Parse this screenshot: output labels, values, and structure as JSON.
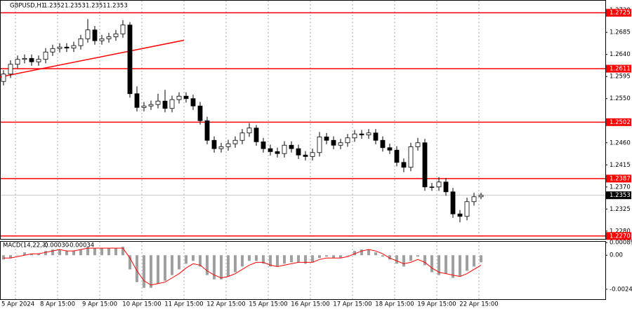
{
  "chart_data": {
    "type": "candlestick",
    "title": "GBPUSD,H1",
    "header_values": [
      1.2352,
      1.2353,
      1.2351,
      1.2353
    ],
    "open": [
      1.2585,
      1.26,
      1.262,
      1.263,
      1.2632,
      1.2625,
      1.263,
      1.2645,
      1.2652,
      1.2655,
      1.2653,
      1.2658,
      1.2672,
      1.269,
      1.2668,
      1.2672,
      1.2676,
      1.2682,
      1.27,
      1.256,
      1.2532,
      1.2535,
      1.2538,
      1.2545,
      1.253,
      1.2548,
      1.2555,
      1.255,
      1.2535,
      1.2505,
      1.2465,
      1.2448,
      1.2452,
      1.2458,
      1.2465,
      1.248,
      1.249,
      1.2462,
      1.2448,
      1.2442,
      1.2438,
      1.2455,
      1.2448,
      1.2435,
      1.2432,
      1.244,
      1.2472,
      1.2465,
      1.2455,
      1.246,
      1.247,
      1.2478,
      1.2476,
      1.248,
      1.2465,
      1.245,
      1.2445,
      1.242,
      1.241,
      1.2452,
      1.246,
      1.237,
      1.237,
      1.238,
      1.236,
      1.2315,
      1.231,
      1.234,
      1.235
    ],
    "high": [
      1.2608,
      1.2628,
      1.2638,
      1.264,
      1.264,
      1.2638,
      1.2653,
      1.266,
      1.2663,
      1.2663,
      1.2666,
      1.268,
      1.2712,
      1.2698,
      1.268,
      1.2684,
      1.269,
      1.271,
      1.2706,
      1.2575,
      1.2543,
      1.2546,
      1.256,
      1.2568,
      1.2556,
      1.2563,
      1.2563,
      1.2558,
      1.2543,
      1.2513,
      1.2473,
      1.246,
      1.2466,
      1.2473,
      1.2488,
      1.25,
      1.2496,
      1.247,
      1.2456,
      1.245,
      1.2463,
      1.2463,
      1.2456,
      1.2443,
      1.2448,
      1.2482,
      1.248,
      1.2473,
      1.2468,
      1.2478,
      1.2486,
      1.2486,
      1.2488,
      1.2488,
      1.2473,
      1.2458,
      1.2453,
      1.2428,
      1.246,
      1.247,
      1.2468,
      1.2378,
      1.239,
      1.2388,
      1.2368,
      1.2323,
      1.2348,
      1.2358,
      1.2358
    ],
    "low": [
      1.2577,
      1.2592,
      1.2612,
      1.2622,
      1.2617,
      1.2617,
      1.2622,
      1.2637,
      1.2644,
      1.2645,
      1.2645,
      1.265,
      1.2664,
      1.266,
      1.266,
      1.2664,
      1.2668,
      1.2674,
      1.2552,
      1.2524,
      1.2524,
      1.2527,
      1.253,
      1.2522,
      1.2522,
      1.254,
      1.2542,
      1.2527,
      1.2497,
      1.2457,
      1.244,
      1.244,
      1.2444,
      1.245,
      1.2457,
      1.2472,
      1.2454,
      1.244,
      1.2434,
      1.243,
      1.243,
      1.244,
      1.2427,
      1.2424,
      1.2424,
      1.2432,
      1.2457,
      1.2447,
      1.2447,
      1.2452,
      1.2462,
      1.2468,
      1.2468,
      1.2457,
      1.2442,
      1.2437,
      1.2412,
      1.24,
      1.2402,
      1.2444,
      1.2362,
      1.2362,
      1.2362,
      1.2352,
      1.2307,
      1.2298,
      1.2302,
      1.2332,
      1.2345
    ],
    "close": [
      1.26,
      1.262,
      1.263,
      1.2632,
      1.2625,
      1.263,
      1.2645,
      1.2652,
      1.2655,
      1.2653,
      1.2658,
      1.2672,
      1.269,
      1.2668,
      1.2672,
      1.2676,
      1.2682,
      1.27,
      1.256,
      1.2532,
      1.2535,
      1.2538,
      1.2545,
      1.253,
      1.2548,
      1.2555,
      1.255,
      1.2535,
      1.2505,
      1.2465,
      1.2448,
      1.2452,
      1.2458,
      1.2465,
      1.248,
      1.249,
      1.2462,
      1.2448,
      1.2442,
      1.2438,
      1.2455,
      1.2448,
      1.2435,
      1.2432,
      1.244,
      1.2472,
      1.2465,
      1.2455,
      1.246,
      1.247,
      1.2478,
      1.2476,
      1.248,
      1.2465,
      1.245,
      1.2445,
      1.242,
      1.241,
      1.2452,
      1.246,
      1.237,
      1.237,
      1.238,
      1.236,
      1.2315,
      1.231,
      1.234,
      1.235,
      1.2353
    ],
    "ylim": [
      1.2264,
      1.2751
    ],
    "yticks": [
      {
        "value": 1.273,
        "label": "1.2730"
      },
      1.2685,
      {
        "value": 1.264,
        "label": "1.2640"
      },
      1.2595,
      {
        "value": 1.255,
        "label": "1.2550"
      },
      {
        "value": 1.246,
        "label": "1.2460"
      },
      1.2415,
      {
        "value": 1.237,
        "label": "1.2370"
      },
      1.2325,
      {
        "value": 1.228,
        "label": "1.2280"
      }
    ],
    "levels": [
      1.2725,
      1.2611,
      1.2502,
      1.2387,
      {
        "value": 1.227,
        "label": "1.2270"
      }
    ],
    "level_color": "#ff0000",
    "current_price": 1.2353,
    "trendline": {
      "from": [
        -0.5,
        1.2594
      ],
      "to": [
        25.7,
        1.2669
      ]
    },
    "xticks": [
      {
        "value": 1.7,
        "label": "5 Apr 2024"
      },
      {
        "value": 7.7,
        "label": "8 Apr 15:00"
      },
      {
        "value": 13.7,
        "label": "9 Apr 15:00"
      },
      {
        "value": 19.7,
        "label": "10 Apr 15:00"
      },
      {
        "value": 25.7,
        "label": "11 Apr 15:00"
      },
      {
        "value": 31.7,
        "label": "12 Apr 15:00"
      },
      {
        "value": 37.7,
        "label": "15 Apr 15:00"
      },
      {
        "value": 43.7,
        "label": "16 Apr 15:00"
      },
      {
        "value": 49.7,
        "label": "17 Apr 15:00"
      },
      {
        "value": 55.7,
        "label": "18 Apr 15:00"
      },
      {
        "value": 61.7,
        "label": "19 Apr 15:00"
      },
      {
        "value": 67.7,
        "label": "22 Apr 15:00"
      }
    ],
    "grid": true,
    "macd": {
      "title": "MACD(14,22,3)",
      "header_values": [
        {
          "value": -0.0003,
          "label": "-0.00030"
        },
        {
          "value": -0.00034,
          "label": "-0.00034"
        }
      ],
      "histogram": [
        -0.0003,
        -0.0002,
        0.0,
        0.0002,
        0.0001,
        0.0001,
        0.0003,
        0.0004,
        0.0004,
        0.0003,
        0.0003,
        0.0004,
        0.0006,
        0.0005,
        0.0005,
        0.0005,
        0.0005,
        0.0006,
        -0.001,
        -0.0019,
        -0.0023,
        -0.0023,
        -0.002,
        -0.0018,
        -0.0014,
        -0.001,
        -0.0006,
        -0.0004,
        -0.0008,
        -0.0014,
        -0.0017,
        -0.0017,
        -0.0015,
        -0.0012,
        -0.0008,
        -0.0004,
        -0.0004,
        -0.0006,
        -0.0008,
        -0.0008,
        -0.0006,
        -0.0005,
        -0.0005,
        -0.0006,
        -0.0005,
        -0.0002,
        -0.0001,
        -0.0002,
        -0.0002,
        0.0,
        0.0003,
        0.0004,
        0.0004,
        0.0002,
        -0.0001,
        -0.0003,
        -0.0006,
        -0.0008,
        -0.0004,
        -0.0001,
        -0.0007,
        -0.0012,
        -0.0014,
        -0.0013,
        -0.0016,
        -0.0015,
        -0.0011,
        -0.0008,
        -0.0005
      ],
      "signal": [
        -0.0002,
        -0.0002,
        -0.0001,
        0.0,
        0.0001,
        0.0001,
        0.0002,
        0.0003,
        0.0004,
        0.0003,
        0.0003,
        0.0004,
        0.0005,
        0.0005,
        0.0005,
        0.0005,
        0.0005,
        0.0005,
        -0.0002,
        -0.0011,
        -0.0018,
        -0.0021,
        -0.002,
        -0.0019,
        -0.0016,
        -0.0013,
        -0.0009,
        -0.0006,
        -0.0007,
        -0.0011,
        -0.0014,
        -0.0016,
        -0.0015,
        -0.0013,
        -0.001,
        -0.0007,
        -0.0005,
        -0.0005,
        -0.0007,
        -0.0008,
        -0.0007,
        -0.0006,
        -0.0005,
        -0.0005,
        -0.0005,
        -0.0003,
        -0.0002,
        -0.0002,
        -0.0002,
        -0.0001,
        0.0001,
        0.0003,
        0.0004,
        0.0003,
        0.0001,
        -0.0002,
        -0.0004,
        -0.0006,
        -0.0005,
        -0.0003,
        -0.0005,
        -0.0009,
        -0.0012,
        -0.0013,
        -0.0014,
        -0.0015,
        -0.0013,
        -0.001,
        -0.0007
      ],
      "histogram_color": "#a0a0a0",
      "signal_color": "#ff0000",
      "ylim": [
        -0.0031,
        0.001
      ],
      "yticks": [
        0.00089,
        {
          "value": 0,
          "label": "0.00"
        },
        -0.0024
      ]
    }
  }
}
